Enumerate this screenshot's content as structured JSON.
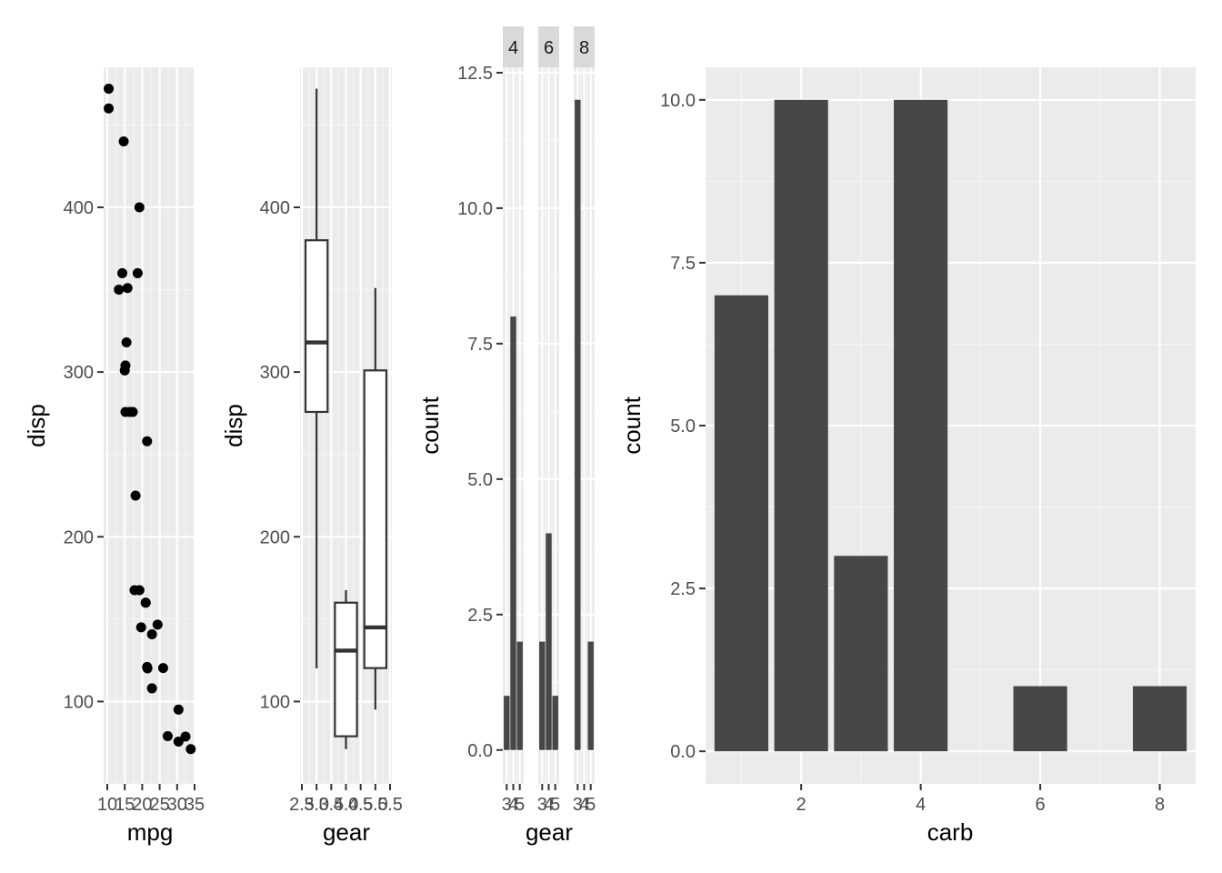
{
  "colors": {
    "panel_bg": "#ebebeb",
    "grid_major": "#ffffff",
    "grid_minor": "#f5f5f5",
    "bar_fill": "#474747",
    "point": "#000000",
    "box_line": "#333333",
    "tick": "#333333",
    "strip_bg": "#d9d9d9"
  },
  "chart_data": [
    {
      "type": "scatter",
      "xlabel": "mpg",
      "ylabel": "disp",
      "xlim": [
        10,
        35
      ],
      "ylim": [
        50,
        485
      ],
      "x_ticks": [
        10,
        15,
        20,
        25,
        30,
        35
      ],
      "y_ticks": [
        100,
        200,
        300,
        400
      ],
      "grid": true,
      "points": [
        [
          10.4,
          472
        ],
        [
          10.4,
          460
        ],
        [
          14.7,
          440
        ],
        [
          19.2,
          400
        ],
        [
          14.3,
          360
        ],
        [
          18.7,
          360
        ],
        [
          13.3,
          350
        ],
        [
          15.8,
          351
        ],
        [
          15.5,
          318
        ],
        [
          15.2,
          304
        ],
        [
          15.0,
          301
        ],
        [
          16.4,
          275.8
        ],
        [
          17.3,
          275.8
        ],
        [
          15.2,
          275.8
        ],
        [
          21.4,
          258
        ],
        [
          18.1,
          225
        ],
        [
          17.8,
          167.6
        ],
        [
          19.2,
          167.6
        ],
        [
          21.0,
          160
        ],
        [
          21.0,
          160
        ],
        [
          19.7,
          145
        ],
        [
          24.4,
          146.7
        ],
        [
          22.8,
          140.8
        ],
        [
          21.5,
          120.1
        ],
        [
          21.4,
          121
        ],
        [
          26.0,
          120.3
        ],
        [
          22.8,
          108
        ],
        [
          32.4,
          78.7
        ],
        [
          27.3,
          79
        ],
        [
          30.4,
          95.1
        ],
        [
          30.4,
          75.7
        ],
        [
          33.9,
          71.1
        ]
      ]
    },
    {
      "type": "box",
      "xlabel": "gear",
      "ylabel": "disp",
      "xlim": [
        2.5,
        5.5
      ],
      "ylim": [
        50,
        485
      ],
      "x_ticks": [
        "2.5",
        "3.0",
        "3.5",
        "4.0",
        "4.5",
        "5.0",
        "5.5"
      ],
      "y_ticks": [
        100,
        200,
        300,
        400
      ],
      "grid": true,
      "boxes": [
        {
          "x": 3,
          "lower_whisker": 120.1,
          "q1": 275.8,
          "median": 318,
          "q3": 380,
          "upper_whisker": 472
        },
        {
          "x": 4,
          "lower_whisker": 71.1,
          "q1": 78.9,
          "median": 130.9,
          "q3": 160,
          "upper_whisker": 167.6
        },
        {
          "x": 5,
          "lower_whisker": 95.1,
          "q1": 120.3,
          "median": 145,
          "q3": 301,
          "upper_whisker": 351
        }
      ]
    },
    {
      "type": "bar",
      "facet_var": "cyl",
      "xlabel": "gear",
      "ylabel": "count",
      "ylim": [
        -0.625,
        12.6
      ],
      "y_ticks": [
        "0.0",
        "2.5",
        "5.0",
        "7.5",
        "10.0",
        "12.5"
      ],
      "x_ticks": [
        "3",
        "4",
        "5"
      ],
      "grid": true,
      "facets": [
        {
          "label": "4",
          "categories": [
            3,
            4,
            5
          ],
          "values": [
            1,
            8,
            2
          ]
        },
        {
          "label": "6",
          "categories": [
            3,
            4,
            5
          ],
          "values": [
            2,
            4,
            1
          ]
        },
        {
          "label": "8",
          "categories": [
            3,
            4,
            5
          ],
          "values": [
            12,
            0,
            2
          ]
        }
      ]
    },
    {
      "type": "bar",
      "xlabel": "carb",
      "ylabel": "count",
      "xlim": [
        0.4,
        8.6
      ],
      "ylim": [
        -0.5,
        10.5
      ],
      "x_ticks": [
        "2",
        "4",
        "6",
        "8"
      ],
      "y_ticks": [
        "0.0",
        "2.5",
        "5.0",
        "7.5",
        "10.0"
      ],
      "grid": true,
      "categories": [
        1,
        2,
        3,
        4,
        6,
        8
      ],
      "values": [
        7,
        10,
        3,
        10,
        1,
        1
      ]
    }
  ]
}
